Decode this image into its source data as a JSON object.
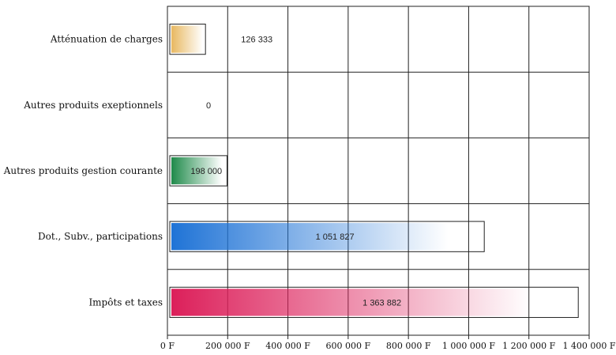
{
  "chart_data": {
    "type": "bar",
    "orientation": "horizontal",
    "categories": [
      "Atténuation de charges",
      "Autres produits exeptionnels",
      "Autres produits gestion courante",
      "Dot., Subv., participations",
      "Impôts et taxes"
    ],
    "values": [
      126333,
      0,
      198000,
      1051827,
      1363882
    ],
    "value_labels": [
      "126 333",
      "0",
      "198 000",
      "1 051 827",
      "1 363 882"
    ],
    "xlim": [
      0,
      1400000
    ],
    "x_ticks": [
      0,
      200000,
      400000,
      600000,
      800000,
      1000000,
      1200000,
      1400000
    ],
    "x_tick_labels": [
      "0 F",
      "200 000 F",
      "400 000 F",
      "600 000 F",
      "800 000 F",
      "1 000 000 F",
      "1 200 000 F",
      "1 400 000 F"
    ],
    "colors": [
      "#e8b860",
      "#d4d4d4",
      "#1f8a4a",
      "#1f73d6",
      "#dc1f5a"
    ],
    "grid": true,
    "title": "",
    "xlabel": "",
    "ylabel": ""
  }
}
